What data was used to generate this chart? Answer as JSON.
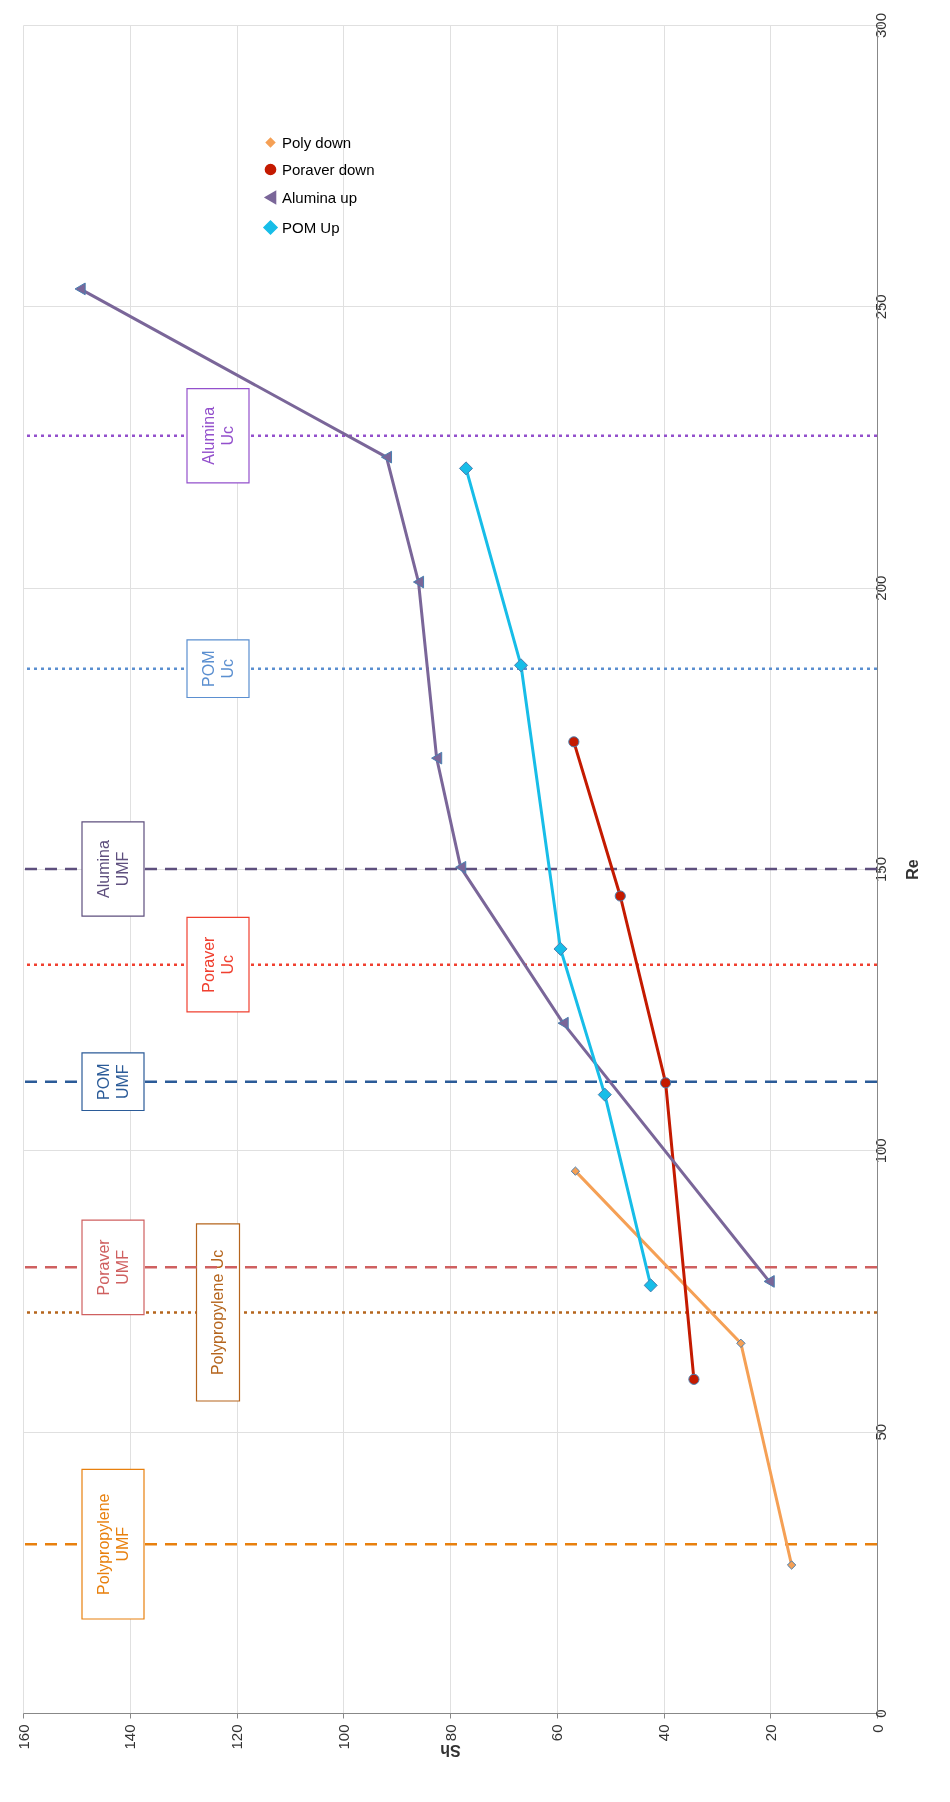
{
  "chart_data": {
    "type": "line",
    "xlabel": "Sh",
    "ylabel": "Re",
    "xlim": [
      160,
      0
    ],
    "xticks": [
      0,
      20,
      40,
      60,
      80,
      100,
      120,
      140,
      160
    ],
    "ylim": [
      0,
      300
    ],
    "yticks": [
      0,
      50,
      100,
      150,
      200,
      250,
      300
    ],
    "grid": true,
    "legend": "top left",
    "series": [
      {
        "name": "Poly down",
        "color": "#f5a055",
        "marker": "diamond",
        "x": [
          16.0,
          25.5,
          56.5
        ],
        "values": [
          26.3,
          65.7,
          96.3
        ]
      },
      {
        "name": "Poraver down",
        "color": "#c41a00",
        "marker": "circle",
        "x": [
          34.3,
          39.6,
          48.1,
          56.8
        ],
        "values": [
          59.3,
          112.0,
          145.2,
          172.6
        ]
      },
      {
        "name": "Alumina up",
        "color": "#7a6699",
        "marker": "triangle",
        "x": [
          20.2,
          58.8,
          78.0,
          82.5,
          85.9,
          91.9,
          149.3
        ],
        "values": [
          76.7,
          122.6,
          150.3,
          169.7,
          201.0,
          223.2,
          253.1
        ]
      },
      {
        "name": "POM Up",
        "color": "#17bde8",
        "marker": "diamond",
        "x": [
          42.4,
          51.0,
          59.3,
          66.7,
          77.0
        ],
        "values": [
          76.0,
          109.9,
          135.8,
          186.2,
          221.2
        ]
      }
    ],
    "ref_lines": [
      {
        "axis": "y",
        "value": 30,
        "label": "Polypropylene\nUMF",
        "color": "#e8800e",
        "line_style": "dashed"
      },
      {
        "axis": "y",
        "value": 71.2,
        "label": "Polypropylene Uc",
        "color": "#b5651d",
        "line_style": "dotted"
      },
      {
        "axis": "y",
        "value": 79.2,
        "label": "Poraver\nUMF",
        "color": "#cf6060",
        "line_style": "dashed"
      },
      {
        "axis": "y",
        "value": 112.2,
        "label": "POM\nUMF",
        "color": "#2b5b98",
        "line_style": "dashed"
      },
      {
        "axis": "y",
        "value": 133,
        "label": "Poraver\nUc",
        "color": "#f04030",
        "line_style": "dotted"
      },
      {
        "axis": "y",
        "value": 150,
        "label": "Alumina\nUMF",
        "color": "#5e4f7e",
        "line_style": "dashed"
      },
      {
        "axis": "y",
        "value": 185.6,
        "label": "POM\nUc",
        "color": "#5b8fd0",
        "line_style": "dotted"
      },
      {
        "axis": "y",
        "value": 227,
        "label": "Alumina\nUc",
        "color": "#9350cc",
        "line_style": "dotted"
      }
    ]
  }
}
